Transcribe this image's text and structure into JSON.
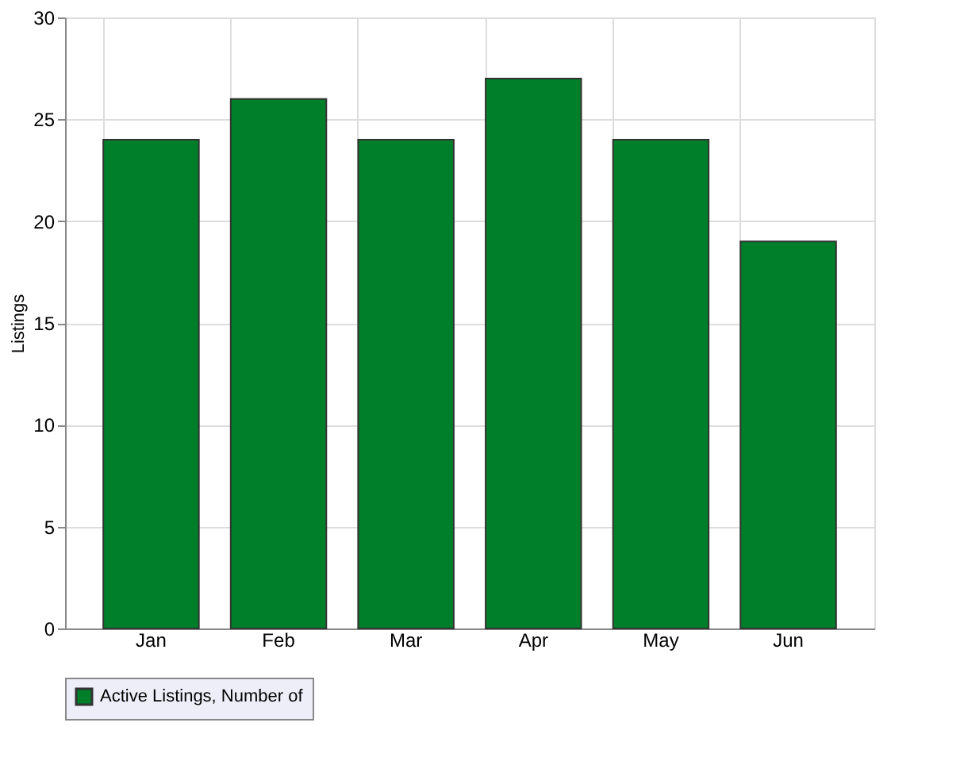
{
  "chart_data": {
    "type": "bar",
    "ylabel": "Listings",
    "categories": [
      "Jan",
      "Feb",
      "Mar",
      "Apr",
      "May",
      "Jun"
    ],
    "series": [
      {
        "name": "Active Listings, Number of",
        "color": "#007f2a",
        "values": [
          24,
          26,
          24,
          27,
          24,
          19
        ]
      }
    ],
    "ylim": [
      0,
      30
    ],
    "yticks": [
      0,
      5,
      10,
      15,
      20,
      25,
      30
    ],
    "grid": true,
    "legend": "bottom"
  }
}
